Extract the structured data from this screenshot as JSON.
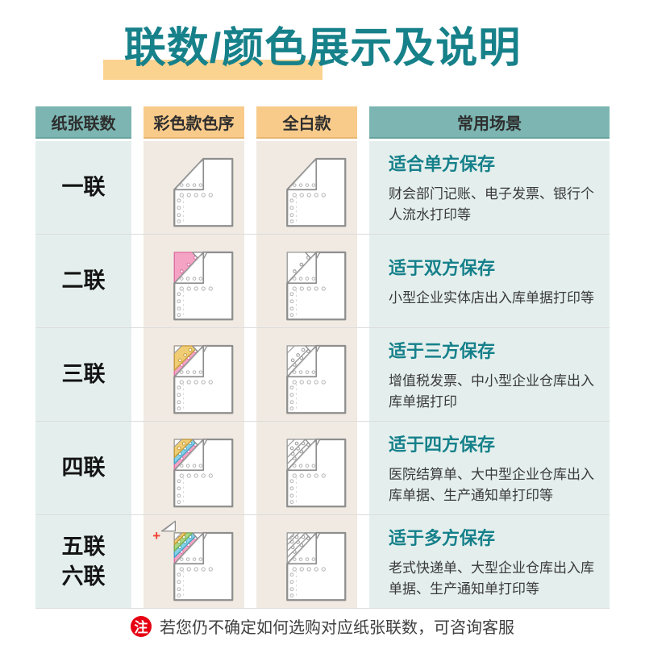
{
  "title": {
    "text": "联数/颜色展示及说明",
    "color": "#17818a",
    "highlight_color": "#fbd390"
  },
  "table": {
    "headers": [
      {
        "label": "纸张联数",
        "style": "teal"
      },
      {
        "label": "彩色款色序",
        "style": "orange"
      },
      {
        "label": "全白款",
        "style": "orange"
      },
      {
        "label": "常用场景",
        "style": "teal"
      }
    ],
    "rows": [
      {
        "label_lines": [
          "一联"
        ],
        "plies": 1,
        "extra_plus": false,
        "scene_title": "适合单方保存",
        "scene_desc": "财会部门记账、电子发票、银行个人流水打印等"
      },
      {
        "label_lines": [
          "二联"
        ],
        "plies": 2,
        "extra_plus": false,
        "scene_title": "适于双方保存",
        "scene_desc": "小型企业实体店出入库单据打印等"
      },
      {
        "label_lines": [
          "三联"
        ],
        "plies": 3,
        "extra_plus": false,
        "scene_title": "适于三方保存",
        "scene_desc": "增值税发票、中小型企业仓库出入库单据打印"
      },
      {
        "label_lines": [
          "四联"
        ],
        "plies": 4,
        "extra_plus": false,
        "scene_title": "适于四方保存",
        "scene_desc": "医院结算单、大中型企业仓库出入库单据、生产通知单打印等"
      },
      {
        "label_lines": [
          "五联",
          "六联"
        ],
        "plies": 5,
        "extra_plus": true,
        "scene_title": "适于多方保存",
        "scene_desc": "老式快递单、大型企业仓库出入库单据、生产通知单打印等"
      }
    ]
  },
  "paper": {
    "stacks": {
      "1": [],
      "2": [
        "pink"
      ],
      "3": [
        "pink",
        "yellow"
      ],
      "4": [
        "pink",
        "blue",
        "yellow"
      ],
      "5": [
        "pink",
        "blue",
        "green",
        "yellow"
      ]
    },
    "colors": {
      "pink": {
        "fill": "#f4a3c4",
        "stroke": "#df6ba1"
      },
      "yellow": {
        "fill": "#f0cd74",
        "stroke": "#c49a3a"
      },
      "blue": {
        "fill": "#85d1e7",
        "stroke": "#47a2c4"
      },
      "green": {
        "fill": "#a9d685",
        "stroke": "#74ad52"
      },
      "white": {
        "fill": "#ffffff",
        "stroke": "#9a9a9a"
      }
    },
    "sheet_stroke": "#8e8e8e",
    "hole_stroke": "#b4b4b4",
    "plus_color": "#ef4136"
  },
  "theme": {
    "header_teal": "#7cb5b1",
    "header_orange": "#f8cb8b",
    "cell_teal_bg": "#e4efed",
    "cell_cream_bg": "#f0eae2",
    "scene_title_color": "#15808a",
    "separator_color": "#dcdcdc"
  },
  "note": {
    "badge": "注",
    "badge_color": "#e60012",
    "text": "若您仍不确定如何选购对应纸张联数，可咨询客服"
  }
}
